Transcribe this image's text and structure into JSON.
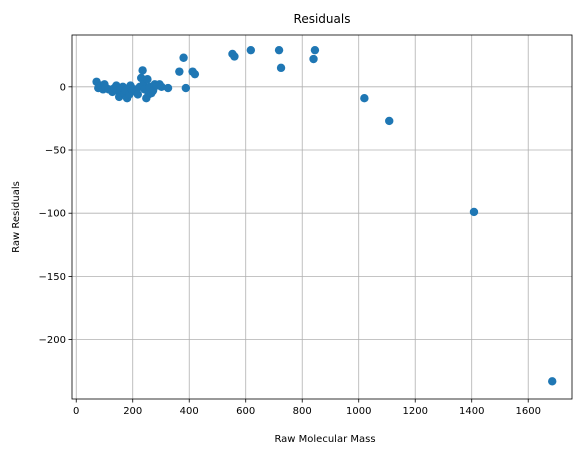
{
  "chart_data": {
    "type": "scatter",
    "title": "Residuals",
    "xlabel": "Raw Molecular Mass",
    "ylabel": "Raw Residuals",
    "xlim": [
      -15,
      1755
    ],
    "ylim": [
      -247,
      41
    ],
    "xticks": [
      0,
      200,
      400,
      600,
      800,
      1000,
      1200,
      1400,
      1600
    ],
    "yticks": [
      0,
      -50,
      -100,
      -150,
      -200
    ],
    "xtick_labels": [
      "0",
      "200",
      "400",
      "600",
      "800",
      "1000",
      "1200",
      "1400",
      "1600"
    ],
    "ytick_labels": [
      "0",
      "−50",
      "−100",
      "−150",
      "−200"
    ],
    "grid": true,
    "marker_color": "#1f77b4",
    "points": [
      [
        72,
        4
      ],
      [
        78,
        -1
      ],
      [
        88,
        1
      ],
      [
        95,
        -2
      ],
      [
        100,
        2
      ],
      [
        105,
        -1
      ],
      [
        115,
        -2
      ],
      [
        128,
        -4
      ],
      [
        135,
        -1
      ],
      [
        142,
        1
      ],
      [
        148,
        -3
      ],
      [
        152,
        -8
      ],
      [
        158,
        -2
      ],
      [
        165,
        0
      ],
      [
        170,
        -5
      ],
      [
        175,
        -3
      ],
      [
        180,
        -9
      ],
      [
        188,
        -6
      ],
      [
        192,
        1
      ],
      [
        198,
        -3
      ],
      [
        205,
        -2
      ],
      [
        212,
        -4
      ],
      [
        218,
        -6
      ],
      [
        225,
        0
      ],
      [
        230,
        7
      ],
      [
        235,
        13
      ],
      [
        238,
        2
      ],
      [
        242,
        -2
      ],
      [
        248,
        -9
      ],
      [
        252,
        6
      ],
      [
        256,
        -6
      ],
      [
        260,
        0
      ],
      [
        266,
        -5
      ],
      [
        272,
        -3
      ],
      [
        278,
        2
      ],
      [
        285,
        1
      ],
      [
        295,
        2
      ],
      [
        302,
        0
      ],
      [
        325,
        -1
      ],
      [
        365,
        12
      ],
      [
        380,
        23
      ],
      [
        388,
        -1
      ],
      [
        412,
        12
      ],
      [
        420,
        10
      ],
      [
        553,
        26
      ],
      [
        560,
        24
      ],
      [
        618,
        29
      ],
      [
        718,
        29
      ],
      [
        725,
        15
      ],
      [
        840,
        22
      ],
      [
        845,
        29
      ],
      [
        1020,
        -9
      ],
      [
        1108,
        -27
      ],
      [
        1408,
        -99
      ],
      [
        1685,
        -233
      ]
    ]
  }
}
